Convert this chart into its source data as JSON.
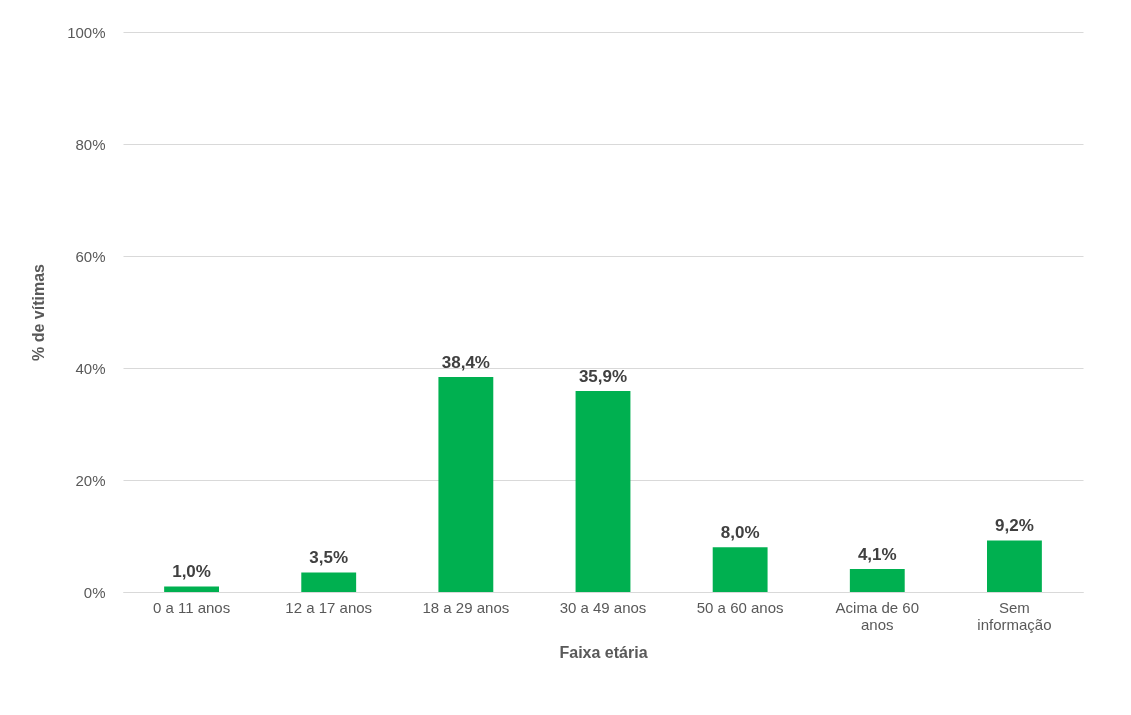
{
  "chart_data": {
    "type": "bar",
    "xlabel": "Faixa etária",
    "ylabel": "% de vítimas",
    "categories": [
      "0 a 11 anos",
      "12 a 17 anos",
      "18 a 29 anos",
      "30 a 49 anos",
      "50 a 60 anos",
      "Acima de 60 anos",
      "Sem informação"
    ],
    "values": [
      1.0,
      3.5,
      38.4,
      35.9,
      8.0,
      4.1,
      9.2
    ],
    "value_labels": [
      "1,0%",
      "3,5%",
      "38,4%",
      "35,9%",
      "8,0%",
      "4,1%",
      "9,2%"
    ],
    "color": "#00b050",
    "ylim": [
      0,
      100
    ],
    "yticks": [
      {
        "value": 0,
        "label": "0%"
      },
      {
        "value": 20,
        "label": "20%"
      },
      {
        "value": 40,
        "label": "40%"
      },
      {
        "value": 60,
        "label": "60%"
      },
      {
        "value": 80,
        "label": "80%"
      },
      {
        "value": 100,
        "label": "100%"
      }
    ],
    "grid": "y"
  }
}
